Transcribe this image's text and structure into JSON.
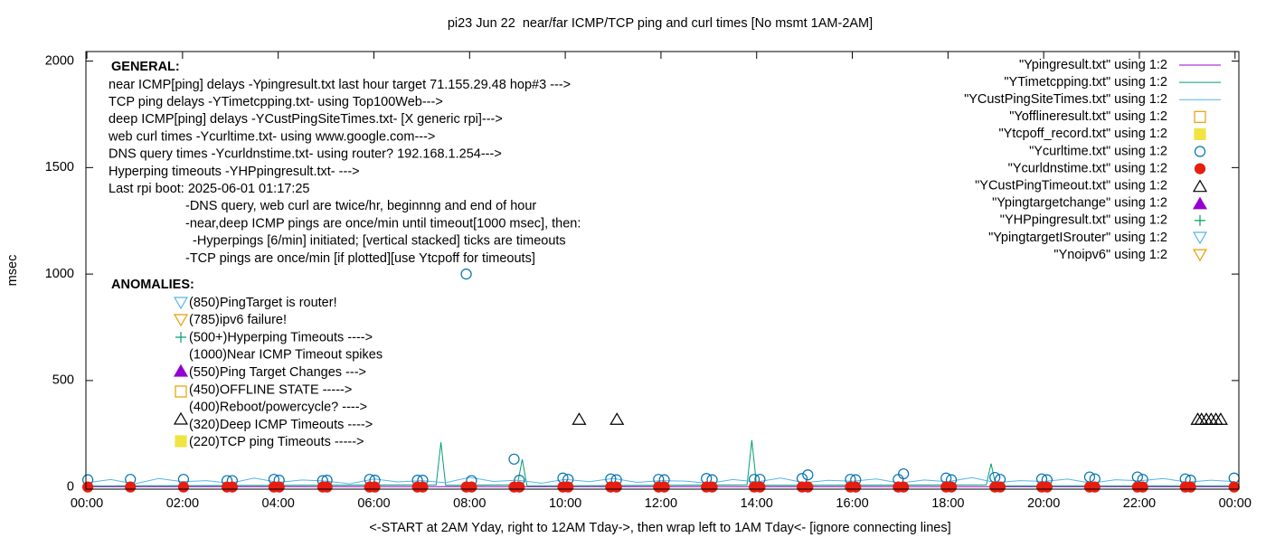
{
  "chart_data": {
    "type": "line",
    "title": "pi23 Jun 22  near/far ICMP/TCP ping and curl times [No msmt 1AM-2AM]",
    "xlabel": "<-START at 2AM Yday, right to 12AM Tday->, then wrap left to 1AM Tday<- [ignore connecting lines]",
    "ylabel": "msec",
    "xlim": [
      -0.02,
      24.08
    ],
    "ylim": [
      -10,
      2045
    ],
    "xticks": [
      {
        "value": 0,
        "label": "00:00"
      },
      {
        "value": 2,
        "label": "02:00"
      },
      {
        "value": 4,
        "label": "04:00"
      },
      {
        "value": 6,
        "label": "06:00"
      },
      {
        "value": 8,
        "label": "08:00"
      },
      {
        "value": 10,
        "label": "10:00"
      },
      {
        "value": 12,
        "label": "12:00"
      },
      {
        "value": 14,
        "label": "14:00"
      },
      {
        "value": 16,
        "label": "16:00"
      },
      {
        "value": 18,
        "label": "18:00"
      },
      {
        "value": 20,
        "label": "20:00"
      },
      {
        "value": 22,
        "label": "22:00"
      },
      {
        "value": 24,
        "label": "00:00"
      }
    ],
    "yticks": [
      0,
      500,
      1000,
      1500,
      2000
    ],
    "general_heading": "GENERAL:",
    "general_notes": [
      "near ICMP[ping] delays -Ypingresult.txt last hour target 71.155.29.48 hop#3 --->",
      "TCP ping delays -YTimetcpping.txt- using Top100Web--->",
      "deep ICMP[ping] delays -YCustPingSiteTimes.txt- [X generic rpi]--->",
      "web curl times -Ycurltime.txt- using www.google.com--->",
      "DNS query times -Ycurldnstime.txt- using router? 192.168.1.254--->",
      "Hyperping timeouts -YHPpingresult.txt- --->",
      "Last rpi boot: 2025-06-01 01:17:25",
      "-DNS query, web curl are twice/hr, beginnng and end of hour",
      "-near,deep ICMP pings are once/min until timeout[1000 msec], then:",
      "  -Hyperpings [6/min] initiated; [vertical stacked] ticks are timeouts",
      "-TCP pings are once/min [if plotted][use Ytcpoff for timeouts]"
    ],
    "anomalies_heading": "ANOMALIES:",
    "anomalies": [
      "(850)PingTarget is router!",
      "(785)ipv6 failure!",
      "(500+)Hyperping Timeouts ---->",
      "(1000)Near ICMP Timeout spikes",
      "(550)Ping Target Changes --->",
      "(450)OFFLINE STATE ----->",
      "(400)Reboot/powercycle? ---->",
      "(320)Deep ICMP Timeouts ---->",
      "(220)TCP ping Timeouts ----->"
    ],
    "series": [
      {
        "name": "\"Ypingresult.txt\" using 1:2",
        "color": "#9400d3",
        "style": "line",
        "x": [
          0,
          24
        ],
        "values": [
          2,
          2
        ]
      },
      {
        "name": "\"YTimetcpping.txt\" using 1:2",
        "color": "#009e73",
        "style": "line",
        "x": [
          0,
          7.3,
          7.4,
          7.5,
          9.0,
          9.1,
          9.2,
          13.8,
          13.9,
          14.0,
          18.8,
          18.9,
          19.0,
          24
        ],
        "values": [
          5,
          10,
          210,
          8,
          10,
          130,
          5,
          10,
          220,
          8,
          10,
          110,
          5,
          5
        ]
      },
      {
        "name": "\"YCustPingSiteTimes.txt\" using 1:2",
        "color": "#56b4e9",
        "style": "line",
        "x": [
          0,
          0.5,
          1,
          1.5,
          2,
          2.5,
          3,
          3.5,
          4,
          4.5,
          5,
          5.5,
          6,
          6.5,
          7,
          7.5,
          8,
          8.5,
          9,
          9.5,
          10,
          10.5,
          11,
          11.5,
          12,
          12.5,
          13,
          13.5,
          14,
          14.5,
          15,
          15.5,
          16,
          16.5,
          17,
          17.5,
          18,
          18.5,
          19,
          19.5,
          20,
          20.5,
          21,
          21.5,
          22,
          22.5,
          23,
          23.5,
          24
        ],
        "values": [
          20,
          35,
          15,
          40,
          25,
          30,
          18,
          42,
          22,
          33,
          28,
          15,
          38,
          24,
          30,
          20,
          45,
          26,
          32,
          18,
          36,
          25,
          40,
          22,
          30,
          28,
          17,
          35,
          24,
          42,
          20,
          31,
          27,
          38,
          19,
          33,
          25,
          44,
          21,
          30,
          26,
          37,
          18,
          34,
          29,
          40,
          23,
          32,
          25
        ]
      },
      {
        "name": "\"Yofflineresult.txt\" using 1:2",
        "color": "#e69f00",
        "style": "square-open",
        "x": [],
        "values": []
      },
      {
        "name": "\"Ytcpoff_record.txt\" using 1:2",
        "color": "#f0e442",
        "style": "square-filled",
        "x": [],
        "values": []
      },
      {
        "name": "\"Ycurltime.txt\" using 1:2",
        "color": "#0072b2",
        "style": "circle-open",
        "x": [
          0.02,
          0.91,
          2.02,
          2.93,
          3.04,
          3.91,
          4.02,
          4.93,
          5.02,
          5.91,
          6.02,
          6.91,
          7.02,
          7.93,
          8.04,
          8.93,
          9.04,
          9.95,
          10.06,
          10.95,
          11.07,
          11.95,
          12.07,
          12.95,
          13.07,
          13.95,
          14.07,
          14.95,
          15.07,
          15.96,
          16.07,
          16.96,
          17.07,
          17.96,
          18.07,
          18.98,
          19.09,
          19.96,
          20.07,
          20.96,
          21.07,
          21.96,
          22.07,
          22.96,
          23.07,
          23.98
        ],
        "values": [
          34,
          36,
          36,
          30,
          30,
          36,
          32,
          30,
          32,
          36,
          32,
          32,
          32,
          1000,
          30,
          131,
          32,
          42,
          36,
          38,
          34,
          36,
          34,
          40,
          34,
          36,
          36,
          40,
          57,
          36,
          34,
          36,
          62,
          42,
          34,
          45,
          36,
          38,
          34,
          47,
          38,
          47,
          36,
          38,
          32,
          42
        ]
      },
      {
        "name": "\"Ycurldnstime.txt\" using 1:2",
        "color": "#e51e10",
        "style": "circle-filled",
        "x": [
          0.02,
          0.91,
          2.02,
          2.93,
          3.04,
          3.91,
          4.02,
          4.93,
          5.02,
          5.91,
          6.02,
          6.91,
          7.02,
          7.93,
          8.04,
          8.93,
          9.04,
          9.95,
          10.06,
          10.95,
          11.07,
          11.95,
          12.07,
          12.95,
          13.07,
          13.95,
          14.07,
          14.95,
          15.07,
          15.96,
          16.07,
          16.96,
          17.07,
          17.96,
          18.07,
          18.98,
          19.09,
          19.96,
          20.07,
          20.96,
          21.07,
          21.96,
          22.07,
          22.96,
          23.07,
          23.98
        ],
        "values": [
          0,
          0,
          0,
          0,
          0,
          0,
          0,
          0,
          0,
          0,
          0,
          0,
          0,
          0,
          0,
          0,
          0,
          0,
          0,
          0,
          0,
          0,
          0,
          0,
          0,
          0,
          0,
          0,
          0,
          0,
          0,
          0,
          0,
          0,
          0,
          0,
          0,
          0,
          0,
          0,
          0,
          0,
          0,
          0,
          0,
          0
        ]
      },
      {
        "name": "\"YCustPingTimeout.txt\" using 1:2",
        "color": "#000000",
        "style": "triangle-open",
        "x": [
          10.29,
          11.08,
          23.22,
          23.3,
          23.4,
          23.5,
          23.6,
          23.7
        ],
        "values": [
          320,
          320,
          320,
          320,
          320,
          320,
          320,
          320
        ]
      },
      {
        "name": "\"Ypingtargetchange\" using 1:2",
        "color": "#9400d3",
        "style": "triangle-filled",
        "x": [],
        "values": []
      },
      {
        "name": "\"YHPpingresult.txt\" using 1:2",
        "color": "#009e73",
        "style": "plus",
        "x": [],
        "values": []
      },
      {
        "name": "\"YpingtargetISrouter\" using 1:2",
        "color": "#56b4e9",
        "style": "triangle-down-open",
        "x": [],
        "values": []
      },
      {
        "name": "\"Ynoipv6\" using 1:2",
        "color": "#e69f00",
        "style": "triangle-down-open",
        "x": [],
        "values": []
      }
    ]
  }
}
